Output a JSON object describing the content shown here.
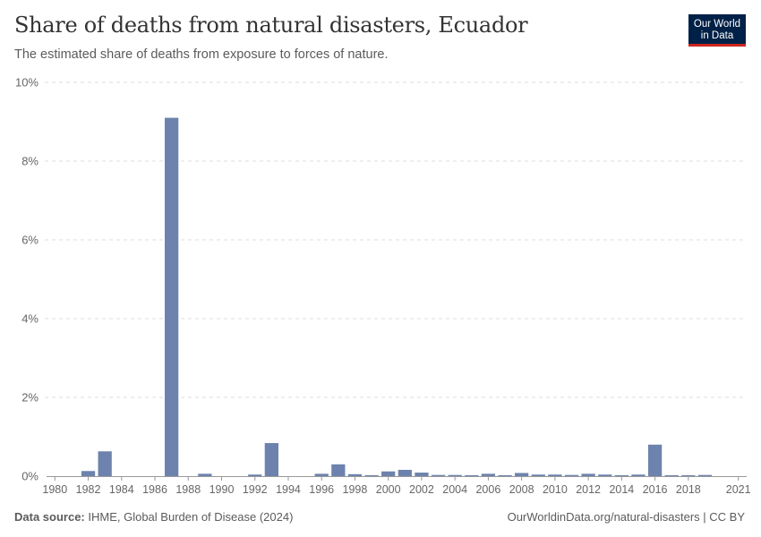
{
  "header": {
    "title": "Share of deaths from natural disasters, Ecuador",
    "subtitle": "The estimated share of deaths from exposure to forces of nature."
  },
  "logo": {
    "line1": "Our World",
    "line2": "in Data"
  },
  "footer": {
    "source_label": "Data source:",
    "source_text": "IHME, Global Burden of Disease (2024)",
    "attribution": "OurWorldinData.org/natural-disasters | CC BY"
  },
  "colors": {
    "bar": "#6d83ad",
    "grid": "#dddddd",
    "axis": "#999999"
  },
  "chart_data": {
    "type": "bar",
    "title": "Share of deaths from natural disasters, Ecuador",
    "xlabel": "",
    "ylabel": "",
    "ylim": [
      0,
      10
    ],
    "yticks": [
      {
        "value": 0,
        "label": "0%"
      },
      {
        "value": 2,
        "label": "2%"
      },
      {
        "value": 4,
        "label": "4%"
      },
      {
        "value": 6,
        "label": "6%"
      },
      {
        "value": 8,
        "label": "8%"
      },
      {
        "value": 10,
        "label": "10%"
      }
    ],
    "xticks": [
      {
        "value": 1980,
        "label": "1980"
      },
      {
        "value": 1982,
        "label": "1982"
      },
      {
        "value": 1984,
        "label": "1984"
      },
      {
        "value": 1986,
        "label": "1986"
      },
      {
        "value": 1988,
        "label": "1988"
      },
      {
        "value": 1990,
        "label": "1990"
      },
      {
        "value": 1992,
        "label": "1992"
      },
      {
        "value": 1994,
        "label": "1994"
      },
      {
        "value": 1996,
        "label": "1996"
      },
      {
        "value": 1998,
        "label": "1998"
      },
      {
        "value": 2000,
        "label": "2000"
      },
      {
        "value": 2002,
        "label": "2002"
      },
      {
        "value": 2004,
        "label": "2004"
      },
      {
        "value": 2006,
        "label": "2006"
      },
      {
        "value": 2008,
        "label": "2008"
      },
      {
        "value": 2010,
        "label": "2010"
      },
      {
        "value": 2012,
        "label": "2012"
      },
      {
        "value": 2014,
        "label": "2014"
      },
      {
        "value": 2016,
        "label": "2016"
      },
      {
        "value": 2018,
        "label": "2018"
      },
      {
        "value": 2021,
        "label": "2021"
      }
    ],
    "grid": true,
    "unit": "%",
    "categories": [
      1980,
      1981,
      1982,
      1983,
      1984,
      1985,
      1986,
      1987,
      1988,
      1989,
      1990,
      1991,
      1992,
      1993,
      1994,
      1995,
      1996,
      1997,
      1998,
      1999,
      2000,
      2001,
      2002,
      2003,
      2004,
      2005,
      2006,
      2007,
      2008,
      2009,
      2010,
      2011,
      2012,
      2013,
      2014,
      2015,
      2016,
      2017,
      2018,
      2019,
      2020,
      2021
    ],
    "values": [
      0,
      0,
      0.13,
      0.63,
      0,
      0,
      0,
      9.1,
      0,
      0.06,
      0,
      0,
      0.04,
      0.84,
      0,
      0,
      0.06,
      0.3,
      0.05,
      0.02,
      0.12,
      0.16,
      0.09,
      0.03,
      0.03,
      0.02,
      0.06,
      0.01,
      0.08,
      0.04,
      0.04,
      0.03,
      0.06,
      0.04,
      0.02,
      0.04,
      0.8,
      0.02,
      0.02,
      0.03,
      0,
      0
    ]
  }
}
